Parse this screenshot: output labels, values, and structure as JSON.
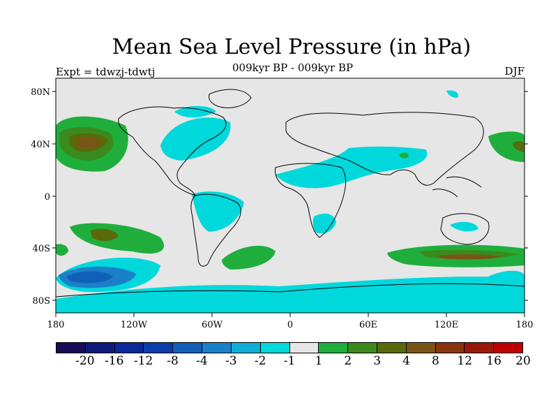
{
  "title": "Mean Sea Level Pressure (in hPa)",
  "subtitle": "009kyr BP - 009kyr BP",
  "experiment": "Expt = tdwzj-tdwtj",
  "season": "DJF",
  "map": {
    "lat_labels": [
      "80N",
      "40N",
      "0",
      "40S",
      "80S"
    ],
    "lon_labels": [
      "180",
      "120W",
      "60W",
      "0",
      "60E",
      "120E",
      "180"
    ],
    "anomaly_regions": [
      {
        "name": "north-pacific-high",
        "level": "3",
        "color": "#4b7d1a"
      },
      {
        "name": "north-pacific-core",
        "level": "4",
        "color": "#7a5416"
      },
      {
        "name": "southern-pacific-low",
        "level": "-4",
        "color": "#1565c0"
      },
      {
        "name": "southern-indian-high",
        "level": "3",
        "color": "#4b7d1a"
      }
    ]
  },
  "colorbar": {
    "colors": [
      "#1a0a5a",
      "#101a7a",
      "#0a2a9a",
      "#0a3eaa",
      "#1060b8",
      "#1a80c8",
      "#0eaed6",
      "#00d8dc",
      "#e6e6e6",
      "#1fae3c",
      "#3a8a1e",
      "#5a6a0a",
      "#7a5416",
      "#8a3410",
      "#9a1808",
      "#c00000"
    ],
    "labels": [
      "-20",
      "-16",
      "-12",
      "-8",
      "-4",
      "-3",
      "-2",
      "-1",
      "1",
      "2",
      "3",
      "4",
      "8",
      "12",
      "16",
      "20"
    ]
  }
}
